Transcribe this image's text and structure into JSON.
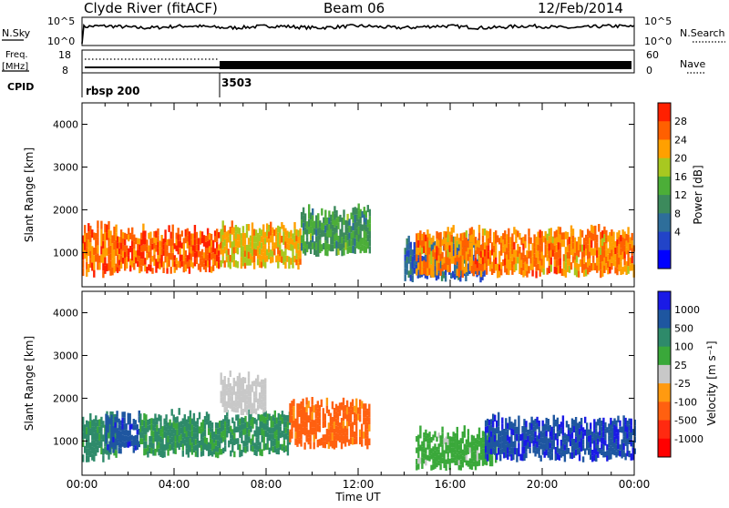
{
  "header": {
    "station": "Clyde River (fitACF)",
    "beam": "Beam 06",
    "date": "12/Feb/2014"
  },
  "noise_panel": {
    "left_label": "N.Sky",
    "right_label": "N.Search",
    "tick_top": "10^5",
    "tick_bottom": "10^0"
  },
  "freq_panel": {
    "left_label_1": "Freq.",
    "left_label_2": "[MHz]",
    "left_top_tick": "18",
    "left_bottom_tick": "8",
    "right_label": "Nave",
    "right_top_tick": "60",
    "right_bottom_tick": "0"
  },
  "cpid_panel": {
    "label": "CPID",
    "segments": [
      {
        "name": "rbsp 200",
        "start_hour": 0
      },
      {
        "name": "3503",
        "start_hour": 6
      }
    ]
  },
  "x_axis": {
    "label": "Time UT",
    "ticks": [
      "00:00",
      "04:00",
      "08:00",
      "12:00",
      "16:00",
      "20:00",
      "00:00"
    ]
  },
  "power_panel": {
    "ylabel": "Slant Range [km]",
    "yticks": [
      "1000",
      "2000",
      "3000",
      "4000"
    ],
    "colorbar_label": "Power [dB]",
    "colorbar_ticks": [
      "4",
      "8",
      "12",
      "16",
      "20",
      "24",
      "28"
    ],
    "colors": [
      "#0000ff",
      "#2244c8",
      "#2e6e9a",
      "#3c8a5c",
      "#4cae38",
      "#a8c820",
      "#ffa000",
      "#ff6000",
      "#ff2000"
    ]
  },
  "velocity_panel": {
    "ylabel": "Slant Range [km]",
    "yticks": [
      "1000",
      "2000",
      "3000",
      "4000"
    ],
    "colorbar_label": "Velocity [m s⁻¹]",
    "colorbar_ticks": [
      "1000",
      "500",
      "100",
      "25",
      "-25",
      "-100",
      "-500",
      "-1000"
    ],
    "colors": [
      "#1a1ae6",
      "#1e56a0",
      "#2e8a6a",
      "#3aa83a",
      "#c8c8c8",
      "#ff9a10",
      "#ff6010",
      "#ff2a10",
      "#ff0000"
    ]
  },
  "chart_data": {
    "type": "heatmap",
    "title": "Clyde River (fitACF) Beam 06 12/Feb/2014",
    "xlabel": "Time UT",
    "ylabel": "Slant Range [km]",
    "xlim_hours": [
      0,
      24
    ],
    "ylim_km": [
      200,
      4500
    ],
    "noise_log10_mean": 3.3,
    "frequency_mhz": 10.5,
    "nave_approx": 20,
    "power_regions": [
      {
        "t0": 0.0,
        "t1": 1.5,
        "r0": 500,
        "r1": 1600,
        "value_db": 26
      },
      {
        "t0": 1.5,
        "t1": 6.0,
        "r0": 600,
        "r1": 1500,
        "value_db": 27
      },
      {
        "t0": 6.0,
        "t1": 9.5,
        "r0": 700,
        "r1": 1600,
        "value_db": 22
      },
      {
        "t0": 9.5,
        "t1": 12.5,
        "r0": 1000,
        "r1": 2000,
        "value_db": 14
      },
      {
        "t0": 14.0,
        "t1": 17.5,
        "r0": 400,
        "r1": 1300,
        "value_db": 8
      },
      {
        "t0": 14.5,
        "t1": 24.0,
        "r0": 500,
        "r1": 1500,
        "value_db": 25
      }
    ],
    "velocity_regions": [
      {
        "t0": 0.0,
        "t1": 1.5,
        "r0": 600,
        "r1": 1600,
        "value_ms": 150
      },
      {
        "t0": 1.0,
        "t1": 2.5,
        "r0": 800,
        "r1": 1600,
        "value_ms": 800
      },
      {
        "t0": 2.5,
        "t1": 9.0,
        "r0": 700,
        "r1": 1600,
        "value_ms": 120
      },
      {
        "t0": 6.0,
        "t1": 8.0,
        "r0": 1700,
        "r1": 2500,
        "value_ms": 0
      },
      {
        "t0": 9.0,
        "t1": 12.5,
        "r0": 900,
        "r1": 1900,
        "value_ms": -150
      },
      {
        "t0": 14.5,
        "t1": 18.0,
        "r0": 400,
        "r1": 1200,
        "value_ms": 60
      },
      {
        "t0": 17.5,
        "t1": 24.0,
        "r0": 600,
        "r1": 1500,
        "value_ms": 900
      }
    ]
  }
}
